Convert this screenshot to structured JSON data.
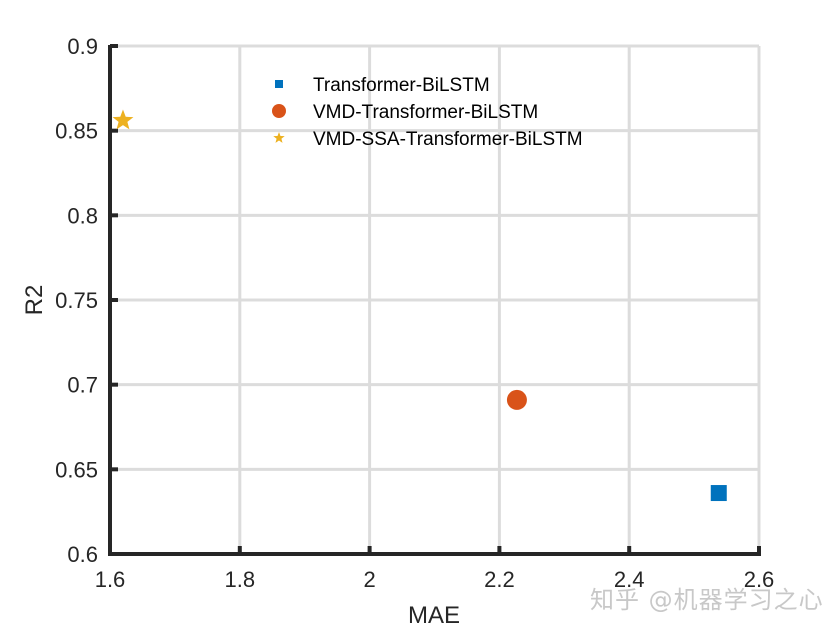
{
  "chart_data": {
    "type": "scatter",
    "title": "",
    "xlabel": "MAE",
    "ylabel": "R2",
    "xlim": [
      1.6,
      2.6
    ],
    "ylim": [
      0.6,
      0.9
    ],
    "xticks": [
      1.6,
      1.8,
      2.0,
      2.2,
      2.4,
      2.6
    ],
    "xtick_labels": [
      "1.6",
      "1.8",
      "2",
      "2.2",
      "2.4",
      "2.6"
    ],
    "yticks": [
      0.6,
      0.65,
      0.7,
      0.75,
      0.8,
      0.85,
      0.9
    ],
    "ytick_labels": [
      "0.6",
      "0.65",
      "0.7",
      "0.75",
      "0.8",
      "0.85",
      "0.9"
    ],
    "grid": true,
    "legend_position": "upper center",
    "series": [
      {
        "name": "Transformer-BiLSTM",
        "marker": "square",
        "color": "#0072BD",
        "x": [
          2.538
        ],
        "y": [
          0.636
        ]
      },
      {
        "name": "VMD-Transformer-BiLSTM",
        "marker": "circle",
        "color": "#D95319",
        "x": [
          2.227
        ],
        "y": [
          0.691
        ]
      },
      {
        "name": "VMD-SSA-Transformer-BiLSTM",
        "marker": "star",
        "color": "#EDB120",
        "x": [
          1.62
        ],
        "y": [
          0.856
        ]
      }
    ]
  },
  "watermark": "知乎 @机器学习之心"
}
